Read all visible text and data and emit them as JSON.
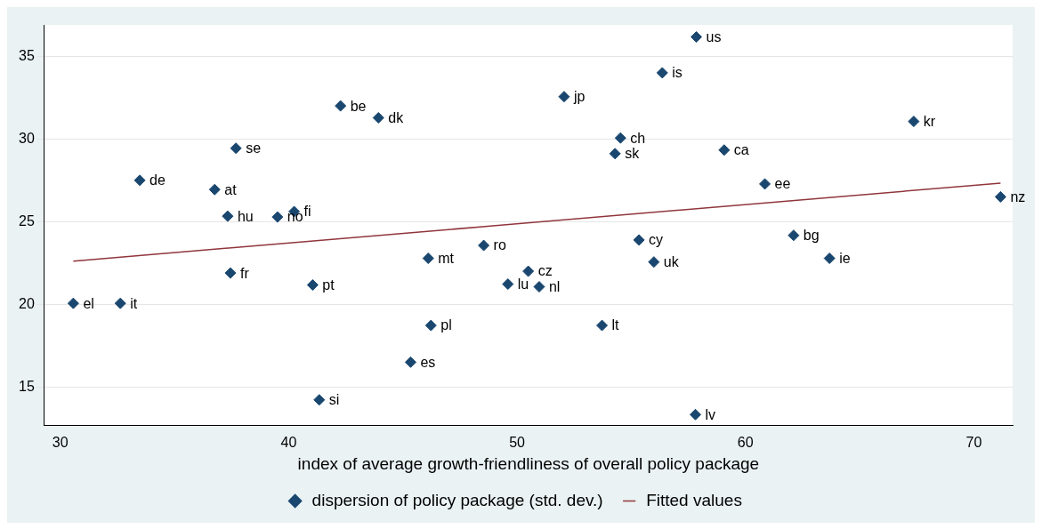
{
  "chart_data": {
    "type": "scatter",
    "xlabel": "index of average growth-friendliness of overall policy package",
    "xlim": [
      29.3,
      71.7
    ],
    "xticks": [
      30,
      40,
      50,
      60,
      70
    ],
    "ylim": [
      12.7,
      36.9
    ],
    "yticks": [
      15,
      20,
      25,
      30,
      35
    ],
    "grid": "y",
    "legend": "bottom",
    "marker": "diamond",
    "series": [
      {
        "name": "dispersion of policy package (std. dev.)",
        "color": "#1a476f",
        "x": [
          30.57,
          32.63,
          33.48,
          36.76,
          37.33,
          37.45,
          37.69,
          39.51,
          40.24,
          41.05,
          41.34,
          42.27,
          43.93,
          45.34,
          46.11,
          46.23,
          48.54,
          49.6,
          50.49,
          50.97,
          52.06,
          53.72,
          54.29,
          54.53,
          55.34,
          55.99,
          56.36,
          57.81,
          57.85,
          59.07,
          60.85,
          62.11,
          63.68,
          67.37,
          71.17
        ],
        "values": [
          20.06,
          20.06,
          27.5,
          26.94,
          25.33,
          21.89,
          29.44,
          25.28,
          25.61,
          21.17,
          14.22,
          32.0,
          31.28,
          16.5,
          22.78,
          18.72,
          23.56,
          21.22,
          22.0,
          21.06,
          32.56,
          18.72,
          29.11,
          30.06,
          23.89,
          22.56,
          34.0,
          13.33,
          36.17,
          29.33,
          27.28,
          24.17,
          22.78,
          31.06,
          26.5
        ]
      },
      {
        "name": "Fitted values",
        "type": "line",
        "color": "#90353b",
        "marker": "none",
        "line_style": "solid",
        "x": [
          30.57,
          71.17
        ],
        "values": [
          22.61,
          27.33
        ]
      }
    ],
    "annotations": [
      {
        "text": "el",
        "x": 30.57,
        "y": 20.06
      },
      {
        "text": "it",
        "x": 32.63,
        "y": 20.06
      },
      {
        "text": "de",
        "x": 33.48,
        "y": 27.5
      },
      {
        "text": "at",
        "x": 36.76,
        "y": 26.94
      },
      {
        "text": "hu",
        "x": 37.33,
        "y": 25.33
      },
      {
        "text": "fr",
        "x": 37.45,
        "y": 21.89
      },
      {
        "text": "se",
        "x": 37.69,
        "y": 29.44
      },
      {
        "text": "no",
        "x": 39.51,
        "y": 25.28
      },
      {
        "text": "fi",
        "x": 40.24,
        "y": 25.61
      },
      {
        "text": "pt",
        "x": 41.05,
        "y": 21.17
      },
      {
        "text": "si",
        "x": 41.34,
        "y": 14.22
      },
      {
        "text": "be",
        "x": 42.27,
        "y": 32.0
      },
      {
        "text": "dk",
        "x": 43.93,
        "y": 31.28
      },
      {
        "text": "es",
        "x": 45.34,
        "y": 16.5
      },
      {
        "text": "mt",
        "x": 46.11,
        "y": 22.78
      },
      {
        "text": "pl",
        "x": 46.23,
        "y": 18.72
      },
      {
        "text": "ro",
        "x": 48.54,
        "y": 23.56
      },
      {
        "text": "lu",
        "x": 49.6,
        "y": 21.22
      },
      {
        "text": "cz",
        "x": 50.49,
        "y": 22.0
      },
      {
        "text": "nl",
        "x": 50.97,
        "y": 21.06
      },
      {
        "text": "jp",
        "x": 52.06,
        "y": 32.56
      },
      {
        "text": "lt",
        "x": 53.72,
        "y": 18.72
      },
      {
        "text": "sk",
        "x": 54.29,
        "y": 29.11
      },
      {
        "text": "ch",
        "x": 54.53,
        "y": 30.06
      },
      {
        "text": "cy",
        "x": 55.34,
        "y": 23.89
      },
      {
        "text": "uk",
        "x": 55.99,
        "y": 22.56
      },
      {
        "text": "is",
        "x": 56.36,
        "y": 34.0
      },
      {
        "text": "lv",
        "x": 57.81,
        "y": 13.33
      },
      {
        "text": "us",
        "x": 57.85,
        "y": 36.17
      },
      {
        "text": "ca",
        "x": 59.07,
        "y": 29.33
      },
      {
        "text": "ee",
        "x": 60.85,
        "y": 27.28
      },
      {
        "text": "bg",
        "x": 62.11,
        "y": 24.17
      },
      {
        "text": "ie",
        "x": 63.68,
        "y": 22.78
      },
      {
        "text": "kr",
        "x": 67.37,
        "y": 31.06
      },
      {
        "text": "nz",
        "x": 71.17,
        "y": 26.5
      }
    ]
  }
}
